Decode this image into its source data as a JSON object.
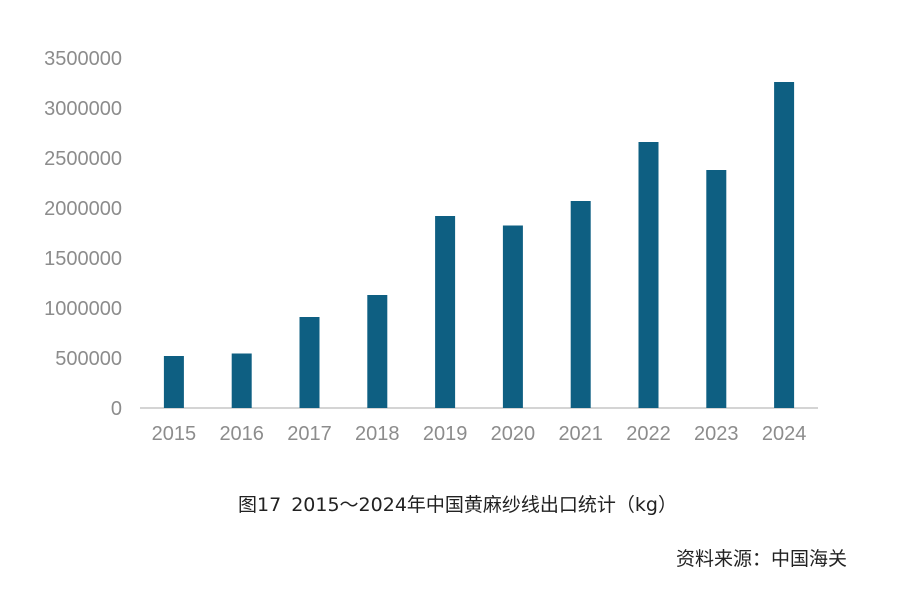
{
  "chart_data": {
    "type": "bar",
    "categories": [
      "2015",
      "2016",
      "2017",
      "2018",
      "2019",
      "2020",
      "2021",
      "2022",
      "2023",
      "2024"
    ],
    "values": [
      520000,
      545000,
      910000,
      1130000,
      1920000,
      1825000,
      2070000,
      2660000,
      2380000,
      3260000
    ],
    "ylim": [
      0,
      3500000
    ],
    "yticks": [
      "0",
      "500000",
      "1000000",
      "1500000",
      "2000000",
      "2500000",
      "3000000",
      "3500000"
    ],
    "grid": false,
    "bar_color": "#0e5f82"
  },
  "caption": {
    "figure_no": "图17",
    "title": "2015～2024年中国黄麻纱线出口统计（kg）"
  },
  "source": "资料来源：中国海关"
}
